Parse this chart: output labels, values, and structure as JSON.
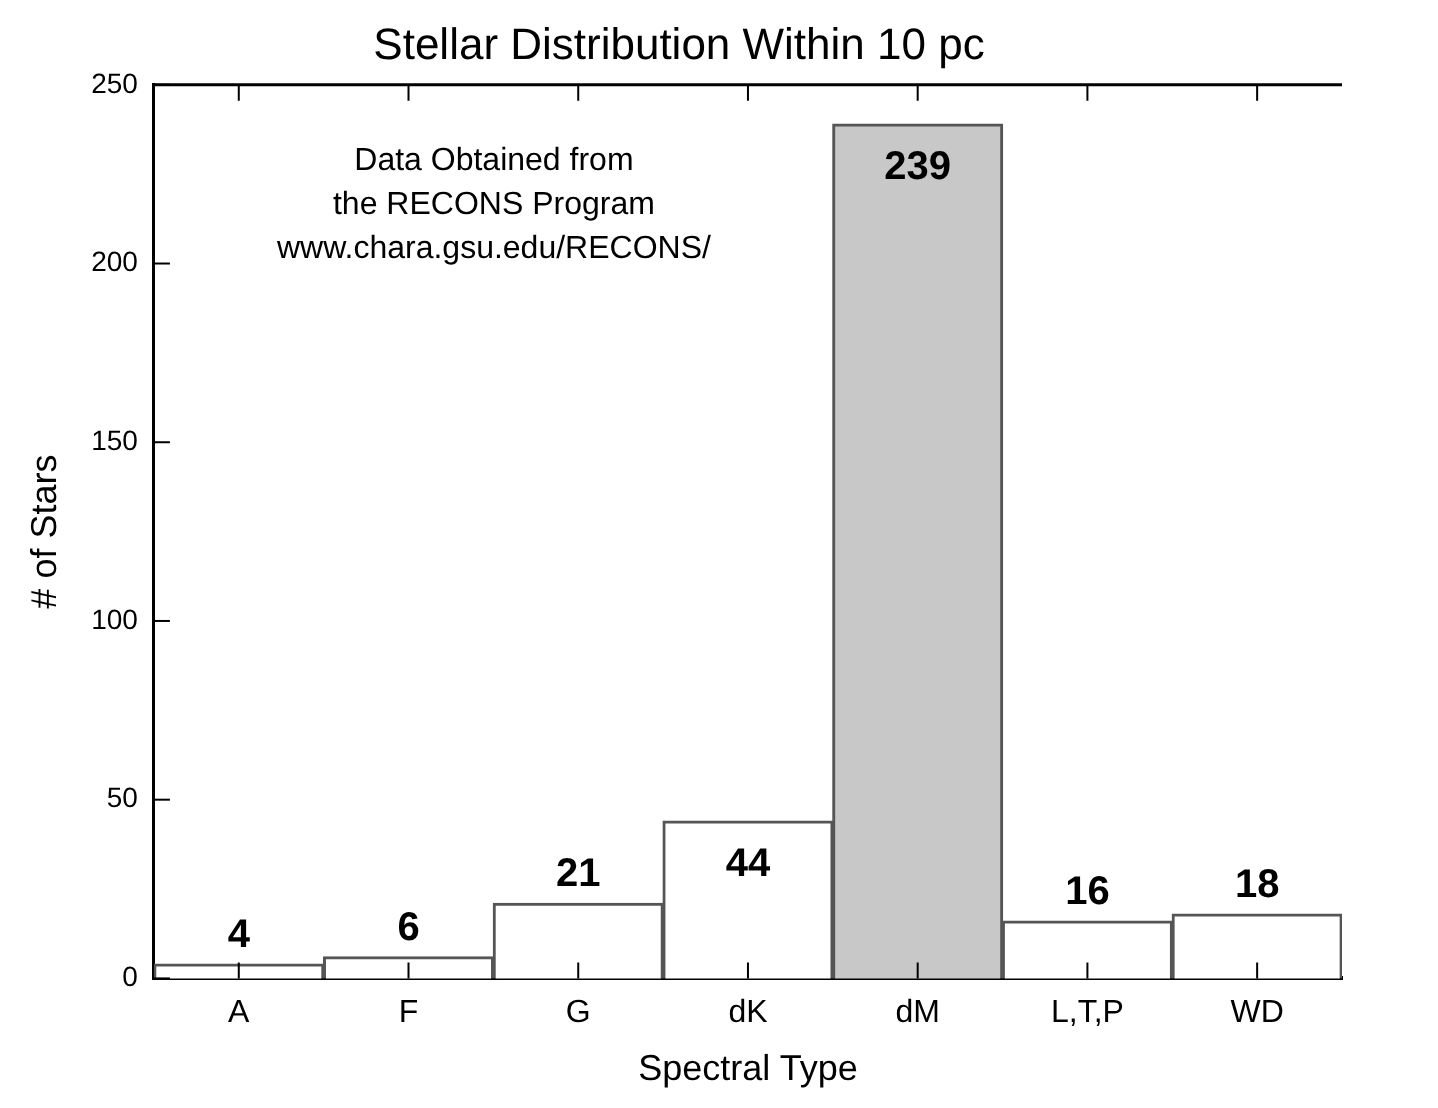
{
  "chart_data": {
    "type": "bar",
    "title": "Stellar Distribution Within 10 pc",
    "xlabel": "Spectral Type",
    "ylabel": "# of Stars",
    "categories": [
      "A",
      "F",
      "G",
      "dK",
      "dM",
      "L,T,P",
      "WD"
    ],
    "values": [
      4,
      6,
      21,
      44,
      239,
      16,
      18
    ],
    "colors": [
      "#ffffff",
      "#ffffff",
      "#ffffff",
      "#ffffff",
      "#c8c8c8",
      "#ffffff",
      "#ffffff"
    ],
    "ylim": [
      0,
      250
    ],
    "yticks": [
      0,
      50,
      100,
      150,
      200,
      250
    ],
    "grid": false,
    "legend": false,
    "data_labels": true,
    "annotations": [
      "Data Obtained from",
      "the RECONS Program",
      "www.chara.gsu.edu/RECONS/"
    ]
  }
}
